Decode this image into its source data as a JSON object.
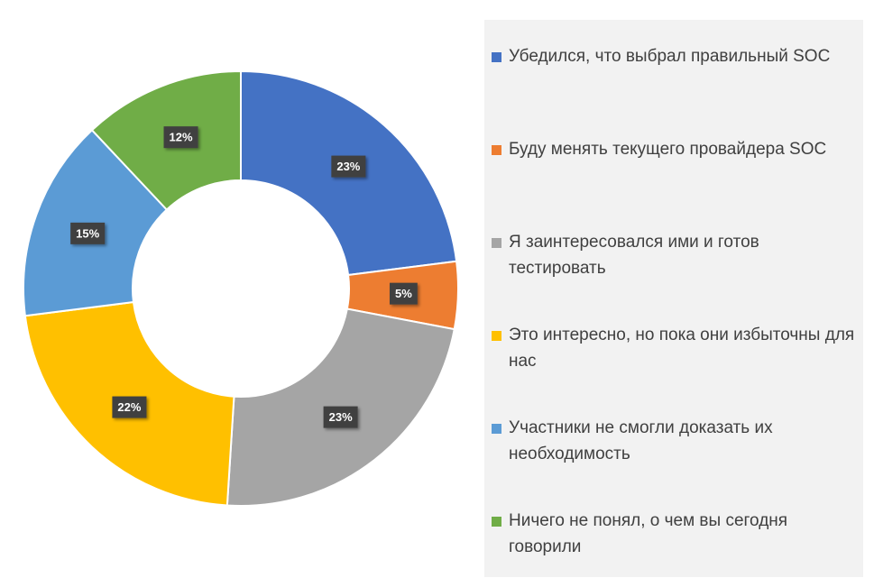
{
  "chart_data": {
    "type": "donut",
    "categories": [
      "Убедился, что выбрал правильный SOC",
      "Буду менять текущего провайдера SOC",
      "Я заинтересовался ими и готов тестировать",
      "Это интересно, но пока они избыточны для нас",
      "Участники не смогли доказать их необходимость",
      "Ничего не понял, о чем вы сегодня говорили"
    ],
    "values": [
      23,
      5,
      23,
      22,
      15,
      12
    ],
    "value_labels": [
      "23%",
      "5%",
      "23%",
      "22%",
      "15%",
      "12%"
    ],
    "colors": [
      "#4472c4",
      "#ed7d31",
      "#a5a5a5",
      "#ffc000",
      "#5b9bd5",
      "#70ad47"
    ],
    "legend": "right"
  }
}
